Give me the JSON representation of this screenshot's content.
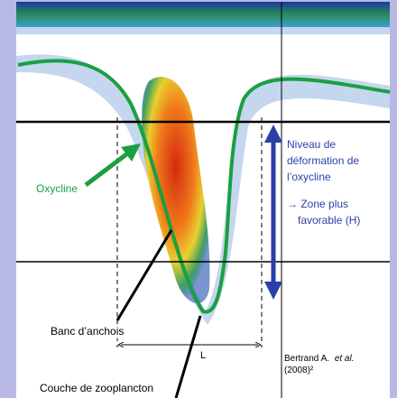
{
  "annotations": {
    "oxycline": "Oxycline",
    "niveau": [
      "Niveau de",
      "déformation de",
      "l’oxycline"
    ],
    "zone": [
      "→ Zone plus",
      "favorable (H)"
    ],
    "banc": "Banc d’anchois",
    "L": "L",
    "couche": "Couche de zooplancton",
    "ref": {
      "author": "Bertrand A.",
      "etal": "et al.",
      "year": "(2008)²"
    }
  }
}
